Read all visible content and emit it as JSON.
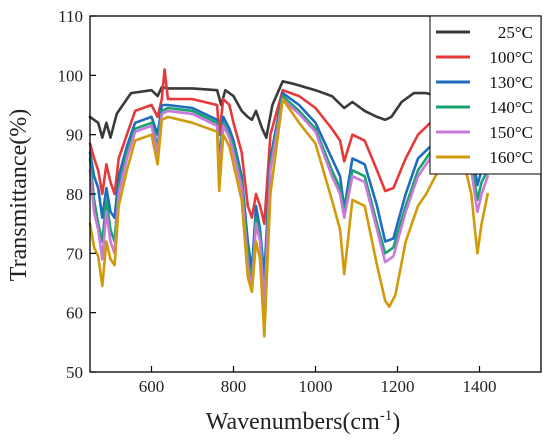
{
  "chart_data": {
    "type": "line",
    "title": "",
    "xlabel_main": "Wavenumbers(cm",
    "xlabel_sup": "-1",
    "xlabel_close": ")",
    "ylabel": "Transmittance(%)",
    "xlim": [
      450,
      1550
    ],
    "ylim": [
      50,
      110
    ],
    "xticks": [
      600,
      800,
      1000,
      1200,
      1400
    ],
    "yticks": [
      50,
      60,
      70,
      80,
      90,
      100,
      110
    ],
    "legend_position": "top-right",
    "grid": false,
    "series": [
      {
        "name": "25°C",
        "color": "#3a3a3a",
        "points": [
          [
            450,
            93
          ],
          [
            470,
            92
          ],
          [
            480,
            89.5
          ],
          [
            490,
            92
          ],
          [
            500,
            89.5
          ],
          [
            515,
            93.5
          ],
          [
            530,
            95
          ],
          [
            550,
            97
          ],
          [
            600,
            97.5
          ],
          [
            615,
            96.5
          ],
          [
            625,
            98
          ],
          [
            640,
            97.8
          ],
          [
            700,
            97.8
          ],
          [
            760,
            97.5
          ],
          [
            770,
            95
          ],
          [
            780,
            97.5
          ],
          [
            800,
            96.5
          ],
          [
            820,
            94
          ],
          [
            835,
            93
          ],
          [
            845,
            92.5
          ],
          [
            855,
            94
          ],
          [
            870,
            91
          ],
          [
            880,
            89.5
          ],
          [
            895,
            95
          ],
          [
            920,
            99
          ],
          [
            950,
            98.5
          ],
          [
            1000,
            97.5
          ],
          [
            1040,
            96.5
          ],
          [
            1070,
            94.5
          ],
          [
            1090,
            95.5
          ],
          [
            1120,
            94
          ],
          [
            1150,
            93
          ],
          [
            1170,
            92.5
          ],
          [
            1185,
            93
          ],
          [
            1210,
            95.5
          ],
          [
            1240,
            97
          ],
          [
            1270,
            97
          ],
          [
            1300,
            96.5
          ]
        ]
      },
      {
        "name": "100°C",
        "color": "#e63a3a",
        "points": [
          [
            450,
            88.5
          ],
          [
            460,
            86
          ],
          [
            470,
            84
          ],
          [
            480,
            80
          ],
          [
            490,
            85
          ],
          [
            500,
            82
          ],
          [
            510,
            80
          ],
          [
            520,
            86
          ],
          [
            540,
            90
          ],
          [
            560,
            94
          ],
          [
            600,
            95
          ],
          [
            615,
            93
          ],
          [
            625,
            96
          ],
          [
            632,
            101
          ],
          [
            640,
            96
          ],
          [
            700,
            96
          ],
          [
            760,
            95
          ],
          [
            765,
            90
          ],
          [
            775,
            96
          ],
          [
            790,
            95
          ],
          [
            800,
            92
          ],
          [
            820,
            87
          ],
          [
            835,
            78
          ],
          [
            845,
            76
          ],
          [
            855,
            80
          ],
          [
            865,
            78
          ],
          [
            875,
            75
          ],
          [
            890,
            90
          ],
          [
            920,
            97.5
          ],
          [
            960,
            96.5
          ],
          [
            1000,
            94.5
          ],
          [
            1040,
            91
          ],
          [
            1060,
            89
          ],
          [
            1070,
            85.5
          ],
          [
            1090,
            90
          ],
          [
            1120,
            89
          ],
          [
            1150,
            84
          ],
          [
            1170,
            80.5
          ],
          [
            1190,
            81
          ],
          [
            1220,
            86
          ],
          [
            1250,
            90
          ],
          [
            1280,
            92
          ],
          [
            1300,
            92
          ]
        ]
      },
      {
        "name": "130°C",
        "color": "#1f6bbf",
        "points": [
          [
            450,
            87
          ],
          [
            460,
            83
          ],
          [
            470,
            81
          ],
          [
            480,
            76
          ],
          [
            490,
            81
          ],
          [
            500,
            77
          ],
          [
            510,
            76
          ],
          [
            520,
            83
          ],
          [
            540,
            88
          ],
          [
            560,
            92
          ],
          [
            600,
            93
          ],
          [
            615,
            90
          ],
          [
            625,
            95
          ],
          [
            640,
            95
          ],
          [
            700,
            94.5
          ],
          [
            760,
            92.5
          ],
          [
            765,
            85
          ],
          [
            775,
            93
          ],
          [
            790,
            91
          ],
          [
            800,
            89
          ],
          [
            820,
            83
          ],
          [
            835,
            72
          ],
          [
            845,
            67
          ],
          [
            855,
            78
          ],
          [
            865,
            74
          ],
          [
            875,
            66
          ],
          [
            890,
            86
          ],
          [
            920,
            97
          ],
          [
            960,
            95
          ],
          [
            1000,
            92
          ],
          [
            1040,
            86
          ],
          [
            1060,
            83
          ],
          [
            1070,
            77.5
          ],
          [
            1090,
            86
          ],
          [
            1120,
            85
          ],
          [
            1150,
            78
          ],
          [
            1170,
            72
          ],
          [
            1190,
            72.5
          ],
          [
            1220,
            80
          ],
          [
            1250,
            86
          ],
          [
            1280,
            88
          ],
          [
            1300,
            89
          ],
          [
            1360,
            90
          ],
          [
            1380,
            88
          ],
          [
            1395,
            81.5
          ],
          [
            1405,
            84
          ],
          [
            1420,
            85
          ]
        ]
      },
      {
        "name": "140°C",
        "color": "#1aa36e",
        "points": [
          [
            450,
            86
          ],
          [
            460,
            79
          ],
          [
            470,
            75
          ],
          [
            480,
            72
          ],
          [
            490,
            79
          ],
          [
            500,
            74
          ],
          [
            510,
            72
          ],
          [
            520,
            81
          ],
          [
            540,
            87
          ],
          [
            560,
            91
          ],
          [
            600,
            92
          ],
          [
            615,
            88
          ],
          [
            625,
            94
          ],
          [
            640,
            94.5
          ],
          [
            700,
            94
          ],
          [
            760,
            92
          ],
          [
            765,
            84
          ],
          [
            775,
            92
          ],
          [
            790,
            90
          ],
          [
            800,
            88
          ],
          [
            820,
            82
          ],
          [
            835,
            70
          ],
          [
            845,
            65
          ],
          [
            855,
            76
          ],
          [
            865,
            73
          ],
          [
            875,
            62
          ],
          [
            890,
            85
          ],
          [
            920,
            96.5
          ],
          [
            960,
            94
          ],
          [
            1000,
            91
          ],
          [
            1040,
            84
          ],
          [
            1060,
            81
          ],
          [
            1070,
            77
          ],
          [
            1090,
            84
          ],
          [
            1120,
            83
          ],
          [
            1150,
            75
          ],
          [
            1170,
            70
          ],
          [
            1190,
            71
          ],
          [
            1220,
            78
          ],
          [
            1250,
            84
          ],
          [
            1280,
            87
          ],
          [
            1300,
            88
          ],
          [
            1360,
            89
          ],
          [
            1380,
            86
          ],
          [
            1395,
            79
          ],
          [
            1405,
            82
          ],
          [
            1420,
            84
          ]
        ]
      },
      {
        "name": "150°C",
        "color": "#c77ad9",
        "points": [
          [
            450,
            84
          ],
          [
            460,
            77
          ],
          [
            470,
            74
          ],
          [
            480,
            69
          ],
          [
            490,
            77
          ],
          [
            500,
            72
          ],
          [
            510,
            70
          ],
          [
            520,
            80
          ],
          [
            540,
            86
          ],
          [
            560,
            90.5
          ],
          [
            600,
            91.5
          ],
          [
            615,
            87
          ],
          [
            625,
            93.5
          ],
          [
            640,
            94
          ],
          [
            700,
            93.5
          ],
          [
            760,
            91.5
          ],
          [
            765,
            83
          ],
          [
            775,
            91.5
          ],
          [
            790,
            89.5
          ],
          [
            800,
            87
          ],
          [
            820,
            81
          ],
          [
            835,
            68
          ],
          [
            845,
            64
          ],
          [
            855,
            75
          ],
          [
            865,
            72
          ],
          [
            875,
            61
          ],
          [
            890,
            84
          ],
          [
            920,
            96
          ],
          [
            960,
            93.5
          ],
          [
            1000,
            90.5
          ],
          [
            1040,
            83
          ],
          [
            1060,
            80
          ],
          [
            1070,
            76
          ],
          [
            1090,
            83
          ],
          [
            1120,
            82
          ],
          [
            1150,
            74
          ],
          [
            1170,
            68.5
          ],
          [
            1190,
            69.5
          ],
          [
            1220,
            77
          ],
          [
            1250,
            83
          ],
          [
            1280,
            86
          ],
          [
            1300,
            87
          ],
          [
            1360,
            88
          ],
          [
            1380,
            84
          ],
          [
            1395,
            77
          ],
          [
            1405,
            80
          ],
          [
            1420,
            83
          ]
        ]
      },
      {
        "name": "160°C",
        "color": "#d19a0a",
        "points": [
          [
            450,
            75
          ],
          [
            460,
            71
          ],
          [
            470,
            69.5
          ],
          [
            480,
            64.5
          ],
          [
            490,
            72
          ],
          [
            500,
            69
          ],
          [
            510,
            68
          ],
          [
            520,
            78
          ],
          [
            540,
            84
          ],
          [
            560,
            89
          ],
          [
            600,
            90
          ],
          [
            615,
            85
          ],
          [
            625,
            92.5
          ],
          [
            640,
            93
          ],
          [
            700,
            92
          ],
          [
            760,
            90.5
          ],
          [
            765,
            80.5
          ],
          [
            775,
            90
          ],
          [
            790,
            88
          ],
          [
            800,
            85
          ],
          [
            820,
            79
          ],
          [
            835,
            66
          ],
          [
            845,
            63.5
          ],
          [
            855,
            72
          ],
          [
            865,
            69
          ],
          [
            875,
            56
          ],
          [
            890,
            80
          ],
          [
            920,
            96
          ],
          [
            960,
            92
          ],
          [
            1000,
            88.5
          ],
          [
            1040,
            79
          ],
          [
            1060,
            74
          ],
          [
            1070,
            66.5
          ],
          [
            1090,
            79
          ],
          [
            1120,
            78
          ],
          [
            1150,
            68
          ],
          [
            1170,
            62
          ],
          [
            1180,
            61
          ],
          [
            1195,
            63
          ],
          [
            1220,
            72
          ],
          [
            1250,
            78
          ],
          [
            1270,
            80
          ],
          [
            1285,
            82
          ],
          [
            1300,
            84
          ],
          [
            1360,
            86
          ],
          [
            1380,
            80
          ],
          [
            1395,
            70
          ],
          [
            1405,
            75
          ],
          [
            1420,
            80
          ]
        ]
      }
    ]
  }
}
